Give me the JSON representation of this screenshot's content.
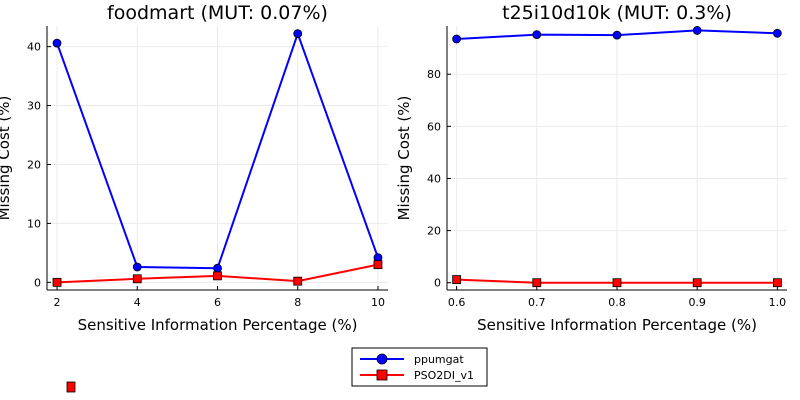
{
  "chart_data": [
    {
      "type": "line",
      "title": "foodmart (MUT: 0.07%)",
      "xlabel": "Sensitive Information Percentage (%)",
      "ylabel": "Missing Cost (%)",
      "x": [
        2,
        4,
        6,
        8,
        10
      ],
      "xticks": [
        2,
        4,
        6,
        8,
        10
      ],
      "xtick_labels": [
        "2",
        "4",
        "6",
        "8",
        "10"
      ],
      "xlim": [
        1.75,
        10.25
      ],
      "yticks": [
        0,
        10,
        20,
        30,
        40
      ],
      "ytick_labels": [
        "0",
        "10",
        "20",
        "30",
        "40"
      ],
      "ylim": [
        -1.3,
        43.5
      ],
      "grid": true,
      "series": [
        {
          "name": "ppumgat",
          "values": [
            40.6,
            2.6,
            2.4,
            42.2,
            4.2
          ],
          "color": "#0000ff",
          "marker": "circle"
        },
        {
          "name": "PSO2DI_v1",
          "values": [
            0.0,
            0.6,
            1.1,
            0.2,
            3.0
          ],
          "color": "#ff0000",
          "marker": "square"
        }
      ]
    },
    {
      "type": "line",
      "title": "t25i10d10k (MUT: 0.3%)",
      "xlabel": "Sensitive Information Percentage (%)",
      "ylabel": "Missing Cost (%)",
      "x": [
        0.6,
        0.7,
        0.8,
        0.9,
        1.0
      ],
      "xticks": [
        0.6,
        0.7,
        0.8,
        0.9,
        1.0
      ],
      "xtick_labels": [
        "0.6",
        "0.7",
        "0.8",
        "0.9",
        "1.0"
      ],
      "xlim": [
        0.588,
        1.012
      ],
      "yticks": [
        0,
        20,
        40,
        60,
        80
      ],
      "ytick_labels": [
        "0",
        "20",
        "40",
        "60",
        "80"
      ],
      "ylim": [
        -2.8,
        98.5
      ],
      "grid": true,
      "series": [
        {
          "name": "ppumgat",
          "values": [
            93.5,
            95.2,
            95.0,
            96.8,
            95.7
          ],
          "color": "#0000ff",
          "marker": "circle"
        },
        {
          "name": "PSO2DI_v1",
          "values": [
            1.2,
            0.0,
            0.0,
            0.0,
            0.0
          ],
          "color": "#ff0000",
          "marker": "square"
        }
      ]
    }
  ],
  "legend": {
    "placement": "bottom-center",
    "items": [
      {
        "label": "ppumgat",
        "color": "#0000ff",
        "marker": "circle"
      },
      {
        "label": "PSO2DI_v1",
        "color": "#ff0000",
        "marker": "square"
      }
    ]
  },
  "colors": {
    "axis": "#000000",
    "grid": "#ebebeb"
  }
}
